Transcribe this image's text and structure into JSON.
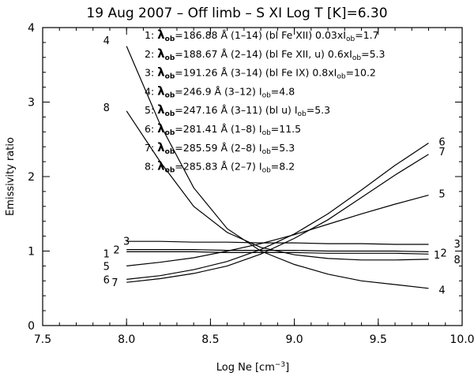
{
  "chart_data": {
    "type": "line",
    "title": "19 Aug 2007 – Off limb –   S  XI   Log T [K]=6.30",
    "xlabel": "Log Ne [cm",
    "xlabel_sup": "−3",
    "xlabel_end": "]",
    "ylabel": "Emissivity ratio",
    "xlim": [
      7.5,
      10.0
    ],
    "ylim": [
      0,
      4
    ],
    "xticks": [
      7.5,
      8.0,
      8.5,
      9.0,
      9.5,
      10.0
    ],
    "xtick_labels": [
      "7.5",
      "8.0",
      "8.5",
      "9.0",
      "9.5",
      "10.0"
    ],
    "yticks": [
      0,
      1,
      2,
      3,
      4
    ],
    "ytick_labels": [
      "0",
      "1",
      "2",
      "3",
      "4"
    ],
    "legend": [
      {
        "num": "1:",
        "sym": "λ",
        "sub": "ob",
        "text": "=186.88 Å (1–14) (bl Fe XII) 0.03xI",
        "sub2": "ob",
        "text2": "=1.7"
      },
      {
        "num": "2:",
        "sym": "λ",
        "sub": "ob",
        "text": "=188.67 Å (2–14) (bl Fe XII, u) 0.6xI",
        "sub2": "ob",
        "text2": "=5.3"
      },
      {
        "num": "3:",
        "sym": "λ",
        "sub": "ob",
        "text": "=191.26 Å (3–14) (bl Fe IX) 0.8xI",
        "sub2": "ob",
        "text2": "=10.2"
      },
      {
        "num": "4:",
        "sym": "λ",
        "sub": "ob",
        "text": "=246.9 Å (3–12) I",
        "sub2": "ob",
        "text2": "=4.8"
      },
      {
        "num": "5:",
        "sym": "λ",
        "sub": "ob",
        "text": "=247.16 Å (3–11) (bl u) I",
        "sub2": "ob",
        "text2": "=5.3"
      },
      {
        "num": "6:",
        "sym": "λ",
        "sub": "ob",
        "text": "=281.41 Å (1–8) I",
        "sub2": "ob",
        "text2": "=11.5"
      },
      {
        "num": "7:",
        "sym": "λ",
        "sub": "ob",
        "text": "=285.59 Å (2–8) I",
        "sub2": "ob",
        "text2": "=5.3"
      },
      {
        "num": "8:",
        "sym": "λ",
        "sub": "ob",
        "text": "=285.83 Å (2–7) I",
        "sub2": "ob",
        "text2": "=8.2"
      }
    ],
    "series": [
      {
        "name": "1",
        "x": [
          8.0,
          8.2,
          8.4,
          8.6,
          8.8,
          9.0,
          9.2,
          9.4,
          9.6,
          9.8
        ],
        "values": [
          1.02,
          1.02,
          1.02,
          1.01,
          1.01,
          1.01,
          1.0,
          1.0,
          1.0,
          0.99
        ]
      },
      {
        "name": "2",
        "x": [
          8.0,
          8.2,
          8.4,
          8.6,
          8.8,
          9.0,
          9.2,
          9.4,
          9.6,
          9.8
        ],
        "values": [
          0.99,
          0.99,
          0.99,
          0.98,
          0.98,
          0.98,
          0.97,
          0.97,
          0.97,
          0.96
        ]
      },
      {
        "name": "3",
        "x": [
          8.0,
          8.2,
          8.4,
          8.6,
          8.8,
          9.0,
          9.2,
          9.4,
          9.6,
          9.8
        ],
        "values": [
          1.13,
          1.13,
          1.12,
          1.12,
          1.11,
          1.11,
          1.1,
          1.1,
          1.09,
          1.09
        ]
      },
      {
        "name": "4",
        "x": [
          8.0,
          8.2,
          8.4,
          8.6,
          8.8,
          9.0,
          9.2,
          9.4,
          9.6,
          9.8
        ],
        "values": [
          3.75,
          2.7,
          1.85,
          1.3,
          1.0,
          0.82,
          0.69,
          0.6,
          0.55,
          0.5
        ]
      },
      {
        "name": "5",
        "x": [
          8.0,
          8.2,
          8.4,
          8.6,
          8.8,
          9.0,
          9.2,
          9.4,
          9.6,
          9.8
        ],
        "values": [
          0.8,
          0.85,
          0.91,
          1.0,
          1.1,
          1.22,
          1.36,
          1.5,
          1.63,
          1.75
        ]
      },
      {
        "name": "6",
        "x": [
          8.0,
          8.2,
          8.4,
          8.6,
          8.8,
          9.0,
          9.2,
          9.4,
          9.6,
          9.8
        ],
        "values": [
          0.62,
          0.67,
          0.75,
          0.86,
          1.02,
          1.23,
          1.5,
          1.82,
          2.15,
          2.45
        ]
      },
      {
        "name": "7",
        "x": [
          8.0,
          8.2,
          8.4,
          8.6,
          8.8,
          9.0,
          9.2,
          9.4,
          9.6,
          9.8
        ],
        "values": [
          0.58,
          0.63,
          0.7,
          0.8,
          0.96,
          1.17,
          1.42,
          1.72,
          2.02,
          2.3
        ]
      },
      {
        "name": "8",
        "x": [
          8.0,
          8.2,
          8.4,
          8.6,
          8.8,
          9.0,
          9.2,
          9.4,
          9.6,
          9.8
        ],
        "values": [
          2.88,
          2.2,
          1.6,
          1.25,
          1.05,
          0.95,
          0.9,
          0.88,
          0.88,
          0.89
        ]
      }
    ],
    "line_labels_left": [
      {
        "text": "4",
        "x": 7.88,
        "y": 3.83
      },
      {
        "text": "8",
        "x": 7.88,
        "y": 2.93
      },
      {
        "text": "3",
        "x": 8.0,
        "y": 1.14
      },
      {
        "text": "1",
        "x": 7.88,
        "y": 0.97
      },
      {
        "text": "2",
        "x": 7.94,
        "y": 1.02
      },
      {
        "text": "5",
        "x": 7.88,
        "y": 0.8
      },
      {
        "text": "6",
        "x": 7.88,
        "y": 0.62
      },
      {
        "text": "7",
        "x": 7.93,
        "y": 0.58
      }
    ],
    "line_labels_right": [
      {
        "text": "6",
        "x": 9.88,
        "y": 2.47
      },
      {
        "text": "7",
        "x": 9.88,
        "y": 2.34
      },
      {
        "text": "5",
        "x": 9.88,
        "y": 1.77
      },
      {
        "text": "3",
        "x": 9.97,
        "y": 1.1
      },
      {
        "text": "1",
        "x": 9.85,
        "y": 0.95
      },
      {
        "text": "2",
        "x": 9.89,
        "y": 0.98
      },
      {
        "text": "8",
        "x": 9.97,
        "y": 0.89
      },
      {
        "text": "4",
        "x": 9.88,
        "y": 0.48
      }
    ]
  }
}
